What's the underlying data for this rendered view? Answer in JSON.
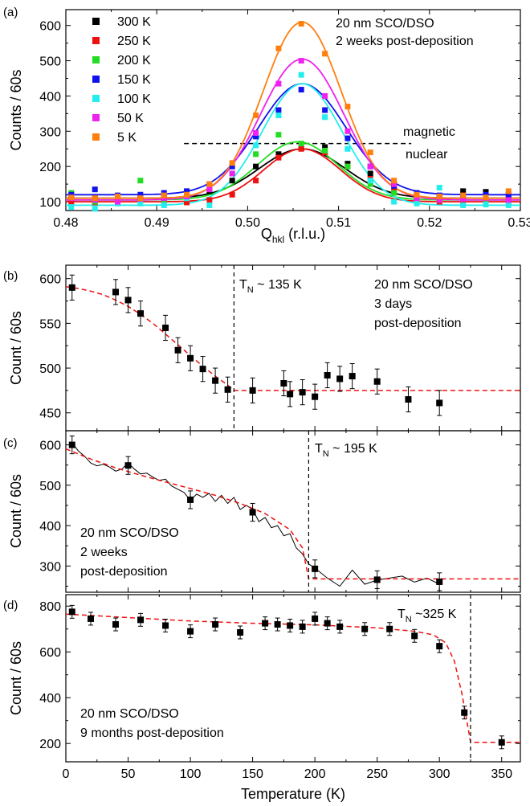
{
  "colors": {
    "300 K": "#000000",
    "250 K": "#ee1111",
    "200 K": "#22dd22",
    "150 K": "#1111ee",
    "100 K": "#22eeee",
    "50 K": "#ee22ee",
    "5 K": "#ff7f0e",
    "fit_line": "#ee1111"
  },
  "chart_data": [
    {
      "panel_label": "(a)",
      "type": "scatter",
      "xlabel": "Q",
      "xlabel_sub": "hkl",
      "xlabel_suffix": " (r.l.u.)",
      "ylabel": "Counts / 60s",
      "xlim": [
        0.48,
        0.53
      ],
      "ylim": [
        75,
        645
      ],
      "xticks": [
        0.48,
        0.49,
        0.5,
        0.51,
        0.52,
        0.53
      ],
      "xtick_labels": [
        "0.48",
        "0.49",
        "0.50",
        "0.51",
        "0.52",
        "0.53"
      ],
      "yticks": [
        100,
        200,
        300,
        400,
        500,
        600
      ],
      "yminor": [
        150,
        250,
        350,
        450,
        550
      ],
      "annotation_lines": [
        "20 nm SCO/DSO",
        "2 weeks post-deposition"
      ],
      "threshold": {
        "y": 265,
        "x_range": [
          0.493,
          0.518
        ],
        "label_above": "magnetic",
        "label_below": "nuclear"
      },
      "legend_position": "top-left",
      "series": [
        {
          "name": "300 K",
          "fit": {
            "a": 110,
            "b": 140,
            "c": 0.506,
            "s": 0.0047
          },
          "x": [
            0.4806,
            0.4832,
            0.4857,
            0.4882,
            0.4908,
            0.4933,
            0.4958,
            0.4983,
            0.5009,
            0.5034,
            0.5059,
            0.5085,
            0.511,
            0.5135,
            0.5161,
            0.5186,
            0.5211,
            0.5237,
            0.5262,
            0.5287
          ],
          "y": [
            108,
            110,
            108,
            112,
            110,
            115,
            130,
            160,
            200,
            235,
            252,
            255,
            208,
            180,
            150,
            120,
            115,
            130,
            128,
            120
          ]
        },
        {
          "name": "250 K",
          "fit": {
            "a": 100,
            "b": 150,
            "c": 0.506,
            "s": 0.0042
          },
          "x": [
            0.4806,
            0.4832,
            0.4857,
            0.4882,
            0.4908,
            0.4933,
            0.4958,
            0.4983,
            0.5009,
            0.5034,
            0.5059,
            0.5085,
            0.511,
            0.5135,
            0.5161,
            0.5186,
            0.5211,
            0.5237,
            0.5262,
            0.5287
          ],
          "y": [
            100,
            98,
            102,
            105,
            100,
            98,
            105,
            120,
            160,
            225,
            250,
            240,
            200,
            165,
            130,
            105,
            100,
            98,
            100,
            100
          ]
        },
        {
          "name": "200 K",
          "fit": {
            "a": 105,
            "b": 165,
            "c": 0.5055,
            "s": 0.0044
          },
          "x": [
            0.4806,
            0.4832,
            0.4857,
            0.4882,
            0.4908,
            0.4933,
            0.4958,
            0.4983,
            0.5009,
            0.5034,
            0.5059,
            0.5085,
            0.511,
            0.5135,
            0.5161,
            0.5186,
            0.5211,
            0.5237,
            0.5262,
            0.5287
          ],
          "y": [
            125,
            100,
            110,
            160,
            105,
            110,
            140,
            180,
            235,
            290,
            265,
            245,
            200,
            150,
            125,
            110,
            105,
            110,
            108,
            110
          ]
        },
        {
          "name": "150 K",
          "fit": {
            "a": 120,
            "b": 315,
            "c": 0.506,
            "s": 0.0048
          },
          "x": [
            0.4806,
            0.4832,
            0.4857,
            0.4882,
            0.4908,
            0.4933,
            0.4958,
            0.4983,
            0.5009,
            0.5034,
            0.5059,
            0.5085,
            0.511,
            0.5135,
            0.5161,
            0.5186,
            0.5211,
            0.5237,
            0.5262,
            0.5287
          ],
          "y": [
            120,
            135,
            118,
            120,
            125,
            130,
            150,
            200,
            285,
            360,
            418,
            360,
            280,
            200,
            145,
            125,
            118,
            115,
            120,
            118
          ]
        },
        {
          "name": "100 K",
          "fit": {
            "a": 90,
            "b": 345,
            "c": 0.506,
            "s": 0.0044
          },
          "x": [
            0.4806,
            0.4832,
            0.4857,
            0.4882,
            0.4908,
            0.4933,
            0.4958,
            0.4983,
            0.5009,
            0.5034,
            0.5059,
            0.5085,
            0.511,
            0.5135,
            0.5161,
            0.5186,
            0.5211,
            0.5237,
            0.5262,
            0.5287
          ],
          "y": [
            85,
            80,
            95,
            95,
            90,
            110,
            90,
            180,
            260,
            345,
            460,
            340,
            250,
            160,
            100,
            95,
            140,
            90,
            92,
            90
          ]
        },
        {
          "name": "50 K",
          "fit": {
            "a": 105,
            "b": 400,
            "c": 0.506,
            "s": 0.0046
          },
          "x": [
            0.4806,
            0.4832,
            0.4857,
            0.4882,
            0.4908,
            0.4933,
            0.4958,
            0.4983,
            0.5009,
            0.5034,
            0.5059,
            0.5085,
            0.511,
            0.5135,
            0.5161,
            0.5186,
            0.5211,
            0.5237,
            0.5262,
            0.5287
          ],
          "y": [
            110,
            105,
            100,
            108,
            110,
            115,
            135,
            180,
            295,
            435,
            500,
            400,
            300,
            200,
            150,
            110,
            105,
            108,
            110,
            105
          ]
        },
        {
          "name": "5 K",
          "fit": {
            "a": 110,
            "b": 500,
            "c": 0.506,
            "s": 0.0043
          },
          "x": [
            0.4806,
            0.4832,
            0.4857,
            0.4882,
            0.4908,
            0.4933,
            0.4958,
            0.4983,
            0.5009,
            0.5034,
            0.5059,
            0.5085,
            0.511,
            0.5135,
            0.5161,
            0.5186,
            0.5211,
            0.5237,
            0.5262,
            0.5287
          ],
          "y": [
            112,
            110,
            115,
            110,
            118,
            120,
            150,
            210,
            345,
            535,
            605,
            520,
            370,
            240,
            160,
            120,
            115,
            118,
            112,
            130
          ]
        }
      ]
    },
    {
      "panel_label": "(b)",
      "type": "scatter",
      "ylabel": "Count / 60s",
      "xlim": [
        0,
        365
      ],
      "ylim": [
        430,
        615
      ],
      "yticks": [
        450,
        500,
        550,
        600
      ],
      "yminor": [
        475,
        525,
        575
      ],
      "tn_label_main": "T",
      "tn_label_sub": "N",
      "tn_label_suffix": " ~ 135 K",
      "tn_x": 135,
      "annotation_lines": [
        "20 nm SCO/DSO",
        "3 days",
        "post-deposition"
      ],
      "x": [
        5,
        40,
        50,
        60,
        80,
        90,
        100,
        110,
        120,
        130,
        150,
        175,
        180,
        190,
        200,
        210,
        220,
        230,
        250,
        275,
        300
      ],
      "y": [
        590,
        585,
        576,
        561,
        545,
        520,
        511,
        499,
        486,
        476,
        475,
        483,
        471,
        473,
        468,
        492,
        488,
        491,
        485,
        465,
        461
      ],
      "yerr": 14,
      "fit_curve": {
        "x": [
          0,
          10,
          20,
          30,
          40,
          50,
          60,
          70,
          80,
          90,
          100,
          110,
          120,
          130,
          135,
          365
        ],
        "y": [
          591,
          589,
          586,
          582,
          576,
          569,
          560,
          550,
          538,
          526,
          514,
          502,
          491,
          481,
          475,
          475
        ]
      }
    },
    {
      "panel_label": "(c)",
      "type": "scatter",
      "ylabel": "Count / 60s",
      "xlim": [
        0,
        365
      ],
      "ylim": [
        235,
        635
      ],
      "yticks": [
        300,
        400,
        500,
        600
      ],
      "yminor": [
        250,
        350,
        450,
        550
      ],
      "tn_label_main": "T",
      "tn_label_sub": "N",
      "tn_label_suffix": " ~ 195 K",
      "tn_x": 195,
      "annotation_lines": [
        "20 nm SCO/DSO",
        "2 weeks",
        "post-deposition"
      ],
      "x": [
        5,
        50,
        100,
        150,
        200,
        250,
        300
      ],
      "y": [
        600,
        549,
        464,
        433,
        293,
        266,
        261
      ],
      "yerr": 22,
      "raw_curve": {
        "x": [
          5,
          10,
          15,
          20,
          25,
          30,
          35,
          40,
          45,
          50,
          55,
          60,
          65,
          70,
          75,
          80,
          85,
          90,
          95,
          100,
          105,
          110,
          115,
          120,
          125,
          130,
          135,
          140,
          145,
          150,
          155,
          160,
          165,
          170,
          175,
          180,
          185,
          190,
          195,
          200,
          210,
          220,
          230,
          240,
          250,
          260,
          270,
          280,
          290,
          300
        ],
        "y": [
          605,
          585,
          572,
          555,
          548,
          552,
          545,
          535,
          540,
          556,
          540,
          528,
          530,
          520,
          512,
          515,
          498,
          490,
          482,
          462,
          478,
          470,
          480,
          460,
          475,
          455,
          470,
          440,
          450,
          440,
          410,
          420,
          395,
          400,
          375,
          380,
          345,
          330,
          305,
          295,
          270,
          250,
          290,
          255,
          265,
          270,
          275,
          260,
          270,
          255
        ]
      },
      "fit_curve": {
        "x": [
          0,
          20,
          40,
          60,
          80,
          100,
          120,
          140,
          160,
          180,
          190,
          195,
          365
        ],
        "y": [
          590,
          565,
          543,
          525,
          508,
          492,
          475,
          455,
          430,
          390,
          345,
          268,
          268
        ]
      }
    },
    {
      "panel_label": "(d)",
      "type": "scatter",
      "ylabel": "Count / 60s",
      "xlabel": "Temperature (K)",
      "xlim": [
        0,
        365
      ],
      "ylim": [
        120,
        850
      ],
      "xticks": [
        0,
        50,
        100,
        150,
        200,
        250,
        300,
        350
      ],
      "yticks": [
        200,
        400,
        600,
        800
      ],
      "yminor": [
        300,
        500,
        700
      ],
      "tn_label_main": "T",
      "tn_label_sub": "N",
      "tn_label_suffix": " ~325 K",
      "tn_x": 325,
      "annotation_lines": [
        "20 nm SCO/DSO",
        "9 months post-deposition"
      ],
      "x": [
        5,
        20,
        40,
        60,
        80,
        100,
        120,
        140,
        160,
        170,
        180,
        190,
        200,
        210,
        220,
        240,
        260,
        280,
        300,
        320,
        350
      ],
      "y": [
        775,
        745,
        720,
        740,
        715,
        690,
        720,
        685,
        725,
        720,
        715,
        710,
        745,
        725,
        710,
        700,
        700,
        670,
        625,
        335,
        205
      ],
      "yerr": 28,
      "fit_curve": {
        "x": [
          0,
          50,
          100,
          150,
          200,
          250,
          280,
          295,
          305,
          312,
          318,
          322,
          325,
          365
        ],
        "y": [
          765,
          750,
          735,
          725,
          718,
          705,
          690,
          675,
          640,
          560,
          420,
          300,
          205,
          205
        ]
      }
    }
  ]
}
